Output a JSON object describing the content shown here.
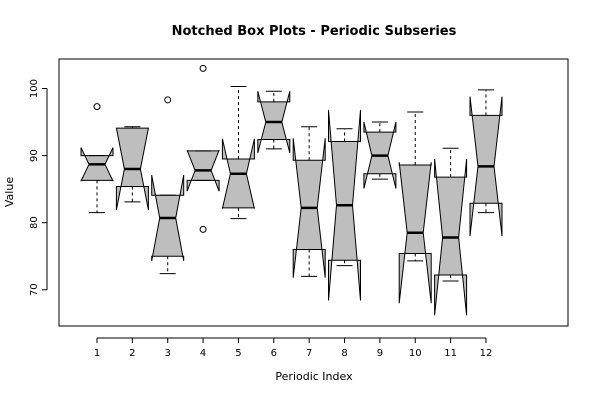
{
  "chart_data": {
    "type": "boxplot",
    "notched": true,
    "title": "Notched Box Plots - Periodic Subseries",
    "xlabel": "Periodic Index",
    "ylabel": "Value",
    "ylim": [
      64.6,
      104.4
    ],
    "yticks": [
      70,
      80,
      90,
      100
    ],
    "categories": [
      "1",
      "2",
      "3",
      "4",
      "5",
      "6",
      "7",
      "8",
      "9",
      "10",
      "11",
      "12"
    ],
    "box_fill": "#bebebe",
    "boxes": [
      {
        "whisker_low": 81.5,
        "q1": 86.3,
        "median": 88.7,
        "q3": 90.0,
        "whisker_high": 90.0,
        "notch_low": 86.2,
        "notch_high": 91.2,
        "outliers": [
          97.3
        ]
      },
      {
        "whisker_low": 83.1,
        "q1": 85.4,
        "median": 88.0,
        "q3": 94.1,
        "whisker_high": 94.3,
        "notch_low": 81.9,
        "notch_high": 94.1,
        "outliers": []
      },
      {
        "whisker_low": 72.4,
        "q1": 75.0,
        "median": 80.7,
        "q3": 84.1,
        "whisker_high": 84.1,
        "notch_low": 74.3,
        "notch_high": 87.1,
        "outliers": [
          98.3
        ]
      },
      {
        "whisker_low": 86.3,
        "q1": 86.3,
        "median": 87.8,
        "q3": 90.7,
        "whisker_high": 90.7,
        "notch_low": 84.7,
        "notch_high": 90.8,
        "outliers": [
          79.0,
          103.0
        ]
      },
      {
        "whisker_low": 80.6,
        "q1": 82.2,
        "median": 87.3,
        "q3": 89.5,
        "whisker_high": 100.3,
        "notch_low": 82.1,
        "notch_high": 92.5,
        "outliers": []
      },
      {
        "whisker_low": 91.0,
        "q1": 92.4,
        "median": 95.0,
        "q3": 98.0,
        "whisker_high": 99.6,
        "notch_low": 90.4,
        "notch_high": 99.6,
        "outliers": []
      },
      {
        "whisker_low": 72.0,
        "q1": 76.0,
        "median": 82.2,
        "q3": 89.3,
        "whisker_high": 94.3,
        "notch_low": 71.8,
        "notch_high": 92.6,
        "outliers": []
      },
      {
        "whisker_low": 73.6,
        "q1": 74.4,
        "median": 82.6,
        "q3": 92.1,
        "whisker_high": 94.0,
        "notch_low": 68.4,
        "notch_high": 96.8,
        "outliers": []
      },
      {
        "whisker_low": 86.5,
        "q1": 87.3,
        "median": 90.0,
        "q3": 93.5,
        "whisker_high": 95.0,
        "notch_low": 85.1,
        "notch_high": 95.0,
        "outliers": []
      },
      {
        "whisker_low": 74.3,
        "q1": 75.4,
        "median": 78.5,
        "q3": 88.6,
        "whisker_high": 96.5,
        "notch_low": 68.0,
        "notch_high": 89.0,
        "outliers": []
      },
      {
        "whisker_low": 71.3,
        "q1": 72.2,
        "median": 77.8,
        "q3": 86.8,
        "whisker_high": 91.1,
        "notch_low": 66.2,
        "notch_high": 89.5,
        "outliers": []
      },
      {
        "whisker_low": 81.5,
        "q1": 82.9,
        "median": 88.4,
        "q3": 96.0,
        "whisker_high": 99.8,
        "notch_low": 78.0,
        "notch_high": 98.8,
        "outliers": []
      }
    ]
  }
}
